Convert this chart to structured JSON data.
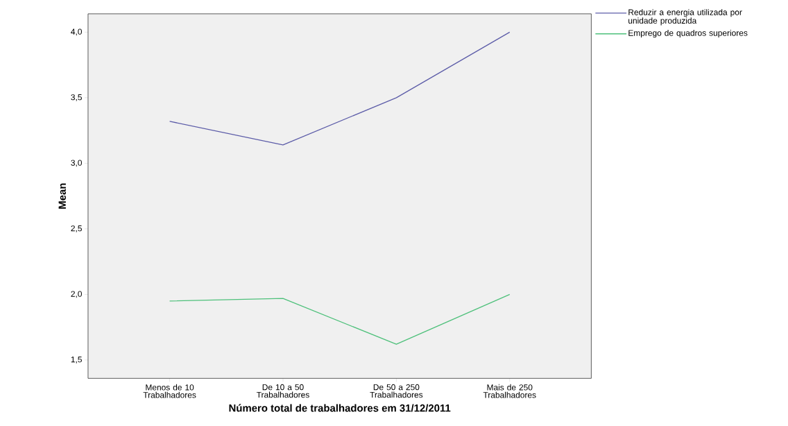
{
  "chart_data": {
    "type": "line",
    "xlabel": "Número total de trabalhadores em 31/12/2011",
    "ylabel": "Mean",
    "categories": [
      "Menos de 10 Trabalhadores",
      "De 10 a 50 Trabalhadores",
      "De 50 a 250 Trabalhadores",
      "Mais de 250 Trabalhadores"
    ],
    "series": [
      {
        "name": "Reduzir a energia utilizada por unidade produzida",
        "color": "#5c5ca8",
        "values": [
          3.32,
          3.14,
          3.5,
          4.0
        ]
      },
      {
        "name": "Emprego de quadros superiores",
        "color": "#4dc07a",
        "values": [
          1.95,
          1.97,
          1.62,
          2.0
        ]
      }
    ],
    "ylim": [
      1.36,
      4.14
    ],
    "yticks": [
      {
        "value": 1.5,
        "label": "1,5"
      },
      {
        "value": 2.0,
        "label": "2,0"
      },
      {
        "value": 2.5,
        "label": "2,5"
      },
      {
        "value": 3.0,
        "label": "3,0"
      },
      {
        "value": 3.5,
        "label": "3,5"
      },
      {
        "value": 4.0,
        "label": "4,0"
      }
    ],
    "legend": "top right",
    "grid": false
  }
}
